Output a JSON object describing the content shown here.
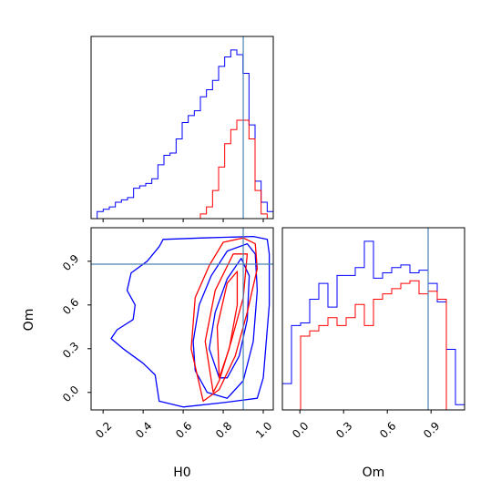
{
  "chart_data": [
    {
      "id": "hist-H0",
      "type": "histogram",
      "title": "",
      "xlim": [
        0.14,
        1.05
      ],
      "x_range_bins": [
        0.14,
        1.05
      ],
      "ticks_hidden": true,
      "truth": 0.9,
      "series": [
        {
          "color": "#0000ff",
          "bins": 30,
          "counts": [
            0,
            3,
            4,
            5,
            7,
            8,
            9,
            13,
            14,
            15,
            17,
            23,
            27,
            28,
            34,
            41,
            44,
            46,
            52,
            55,
            59,
            65,
            69,
            72,
            70,
            62,
            40,
            16,
            7,
            3
          ]
        },
        {
          "color": "#ff0000",
          "bins": 30,
          "counts": [
            0,
            0,
            0,
            0,
            0,
            0,
            0,
            0,
            0,
            0,
            0,
            0,
            0,
            0,
            0,
            0,
            0,
            0,
            2,
            5,
            12,
            22,
            32,
            38,
            42,
            42,
            34,
            12,
            2,
            0
          ]
        }
      ]
    },
    {
      "id": "contour-H0-Om",
      "type": "contour",
      "xlabel": "H0",
      "ylabel": "Om",
      "xlim": [
        0.14,
        1.05
      ],
      "ylim": [
        -0.12,
        1.13
      ],
      "xticks": [
        "0.2",
        "0.4",
        "0.6",
        "0.8",
        "1.0"
      ],
      "xtick_values": [
        0.2,
        0.4,
        0.6,
        0.8,
        1.0
      ],
      "yticks": [
        "0.0",
        "0.3",
        "0.6",
        "0.9"
      ],
      "ytick_values": [
        0.0,
        0.3,
        0.6,
        0.9
      ],
      "truth": [
        0.9,
        0.88
      ],
      "series": [
        {
          "color": "#0000ff",
          "levels": [
            [
              [
                0.48,
                -0.06
              ],
              [
                0.46,
                0.12
              ],
              [
                0.4,
                0.2
              ],
              [
                0.3,
                0.3
              ],
              [
                0.24,
                0.37
              ],
              [
                0.27,
                0.43
              ],
              [
                0.35,
                0.5
              ],
              [
                0.36,
                0.6
              ],
              [
                0.32,
                0.7
              ],
              [
                0.34,
                0.82
              ],
              [
                0.42,
                0.9
              ],
              [
                0.48,
                1.0
              ],
              [
                0.5,
                1.05
              ],
              [
                0.7,
                1.06
              ],
              [
                0.95,
                1.07
              ],
              [
                1.02,
                1.05
              ],
              [
                1.03,
                0.95
              ],
              [
                1.03,
                0.6
              ],
              [
                1.0,
                0.1
              ],
              [
                0.97,
                -0.04
              ],
              [
                0.8,
                -0.07
              ],
              [
                0.6,
                -0.1
              ],
              [
                0.48,
                -0.06
              ]
            ],
            [
              [
                0.72,
                0.0
              ],
              [
                0.66,
                0.15
              ],
              [
                0.65,
                0.35
              ],
              [
                0.68,
                0.6
              ],
              [
                0.74,
                0.8
              ],
              [
                0.82,
                0.97
              ],
              [
                0.92,
                1.02
              ],
              [
                0.96,
                0.95
              ],
              [
                0.97,
                0.7
              ],
              [
                0.95,
                0.35
              ],
              [
                0.9,
                0.08
              ],
              [
                0.82,
                -0.04
              ],
              [
                0.72,
                0.0
              ]
            ],
            [
              [
                0.78,
                0.1
              ],
              [
                0.73,
                0.3
              ],
              [
                0.76,
                0.55
              ],
              [
                0.82,
                0.78
              ],
              [
                0.89,
                0.92
              ],
              [
                0.93,
                0.8
              ],
              [
                0.92,
                0.5
              ],
              [
                0.88,
                0.25
              ],
              [
                0.82,
                0.1
              ],
              [
                0.78,
                0.1
              ]
            ]
          ]
        },
        {
          "color": "#ff0000",
          "levels": [
            [
              [
                0.7,
                -0.06
              ],
              [
                0.64,
                0.3
              ],
              [
                0.66,
                0.65
              ],
              [
                0.73,
                0.87
              ],
              [
                0.8,
                1.03
              ],
              [
                0.9,
                1.06
              ],
              [
                0.96,
                1.02
              ],
              [
                0.97,
                0.85
              ],
              [
                0.92,
                0.55
              ],
              [
                0.86,
                0.25
              ],
              [
                0.78,
                0.02
              ],
              [
                0.7,
                -0.06
              ]
            ],
            [
              [
                0.75,
                0.0
              ],
              [
                0.71,
                0.35
              ],
              [
                0.76,
                0.7
              ],
              [
                0.85,
                0.95
              ],
              [
                0.92,
                0.95
              ],
              [
                0.9,
                0.65
              ],
              [
                0.84,
                0.35
              ],
              [
                0.78,
                0.08
              ],
              [
                0.75,
                0.0
              ]
            ],
            [
              [
                0.78,
                0.1
              ],
              [
                0.77,
                0.45
              ],
              [
                0.82,
                0.75
              ],
              [
                0.87,
                0.83
              ],
              [
                0.87,
                0.6
              ],
              [
                0.83,
                0.3
              ],
              [
                0.78,
                0.1
              ]
            ]
          ]
        }
      ]
    },
    {
      "id": "hist-Om",
      "type": "histogram",
      "xlabel": "Om",
      "xlim": [
        -0.12,
        1.13
      ],
      "xticks": [
        "0.0",
        "0.3",
        "0.6",
        "0.9"
      ],
      "xtick_values": [
        0.0,
        0.3,
        0.6,
        0.9
      ],
      "truth": 0.88,
      "series": [
        {
          "color": "#0000ff",
          "bins": 20,
          "counts": [
            10,
            32,
            33,
            42,
            48,
            39,
            51,
            51,
            54,
            64,
            50,
            52,
            54,
            55,
            52,
            53,
            48,
            41,
            23,
            2
          ]
        },
        {
          "color": "#ff0000",
          "bins": 20,
          "counts": [
            0,
            0,
            28,
            30,
            32,
            35,
            32,
            35,
            40,
            32,
            42,
            44,
            46,
            48,
            49,
            44,
            45,
            42,
            0,
            0
          ]
        }
      ]
    }
  ]
}
